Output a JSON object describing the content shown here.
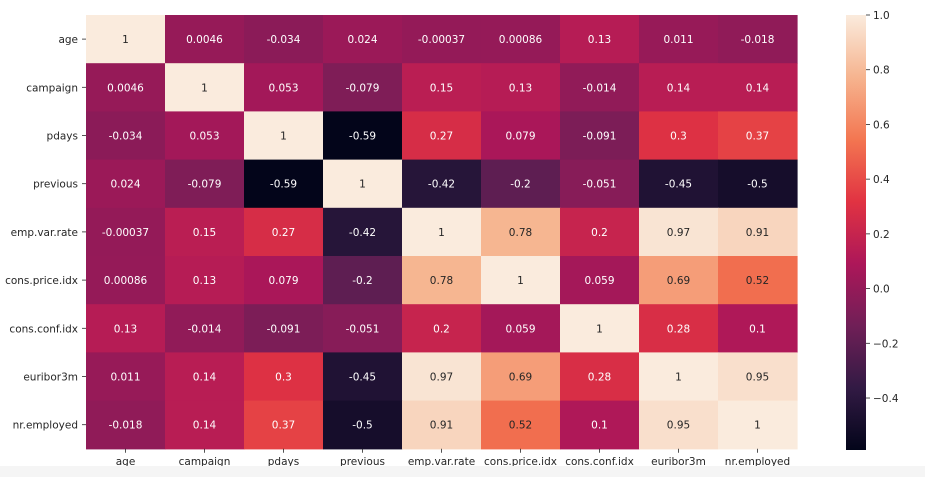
{
  "chart_data": {
    "type": "heatmap",
    "title": "",
    "xlabel": "",
    "ylabel": "",
    "labels": [
      "age",
      "campaign",
      "pdays",
      "previous",
      "emp.var.rate",
      "cons.price.idx",
      "cons.conf.idx",
      "euribor3m",
      "nr.employed"
    ],
    "values": [
      [
        1,
        0.0046,
        -0.034,
        0.024,
        -0.00037,
        0.00086,
        0.13,
        0.011,
        -0.018
      ],
      [
        0.0046,
        1,
        0.053,
        -0.079,
        0.15,
        0.13,
        -0.014,
        0.14,
        0.14
      ],
      [
        -0.034,
        0.053,
        1,
        -0.59,
        0.27,
        0.079,
        -0.091,
        0.3,
        0.37
      ],
      [
        0.024,
        -0.079,
        -0.59,
        1,
        -0.42,
        -0.2,
        -0.051,
        -0.45,
        -0.5
      ],
      [
        -0.00037,
        0.15,
        0.27,
        -0.42,
        1,
        0.78,
        0.2,
        0.97,
        0.91
      ],
      [
        0.00086,
        0.13,
        0.079,
        -0.2,
        0.78,
        1,
        0.059,
        0.69,
        0.52
      ],
      [
        0.13,
        -0.014,
        -0.091,
        -0.051,
        0.2,
        0.059,
        1,
        0.28,
        0.1
      ],
      [
        0.011,
        0.14,
        0.3,
        -0.45,
        0.97,
        0.69,
        0.28,
        1,
        0.95
      ],
      [
        -0.018,
        0.14,
        0.37,
        -0.5,
        0.91,
        0.52,
        0.1,
        0.95,
        1
      ]
    ],
    "annotations": [
      [
        "1",
        "0.0046",
        "-0.034",
        "0.024",
        "-0.00037",
        "0.00086",
        "0.13",
        "0.011",
        "-0.018"
      ],
      [
        "0.0046",
        "1",
        "0.053",
        "-0.079",
        "0.15",
        "0.13",
        "-0.014",
        "0.14",
        "0.14"
      ],
      [
        "-0.034",
        "0.053",
        "1",
        "-0.59",
        "0.27",
        "0.079",
        "-0.091",
        "0.3",
        "0.37"
      ],
      [
        "0.024",
        "-0.079",
        "-0.59",
        "1",
        "-0.42",
        "-0.2",
        "-0.051",
        "-0.45",
        "-0.5"
      ],
      [
        "-0.00037",
        "0.15",
        "0.27",
        "-0.42",
        "1",
        "0.78",
        "0.2",
        "0.97",
        "0.91"
      ],
      [
        "0.00086",
        "0.13",
        "0.079",
        "-0.2",
        "0.78",
        "1",
        "0.059",
        "0.69",
        "0.52"
      ],
      [
        "0.13",
        "-0.014",
        "-0.091",
        "-0.051",
        "0.2",
        "0.059",
        "1",
        "0.28",
        "0.1"
      ],
      [
        "0.011",
        "0.14",
        "0.3",
        "-0.45",
        "0.97",
        "0.69",
        "0.28",
        "1",
        "0.95"
      ],
      [
        "-0.018",
        "0.14",
        "0.37",
        "-0.5",
        "0.91",
        "0.52",
        "0.1",
        "0.95",
        "1"
      ]
    ],
    "colorbar": {
      "vmin": -0.59,
      "vmax": 1.0,
      "ticks": [
        -0.4,
        -0.2,
        0.0,
        0.2,
        0.4,
        0.6,
        0.8,
        1.0
      ],
      "tick_labels": [
        "−0.4",
        "−0.2",
        "0.0",
        "0.2",
        "0.4",
        "0.6",
        "0.8",
        "1.0"
      ],
      "colormap": "rocket",
      "colormap_stops": [
        "#03051a",
        "#321a44",
        "#701f57",
        "#ad1759",
        "#e13342",
        "#f37651",
        "#f6b48f",
        "#faebdd"
      ]
    },
    "annotation_colors": {
      "on_dark": "#ffffff",
      "on_light": "#262626"
    },
    "grid": false,
    "legend": "none"
  }
}
